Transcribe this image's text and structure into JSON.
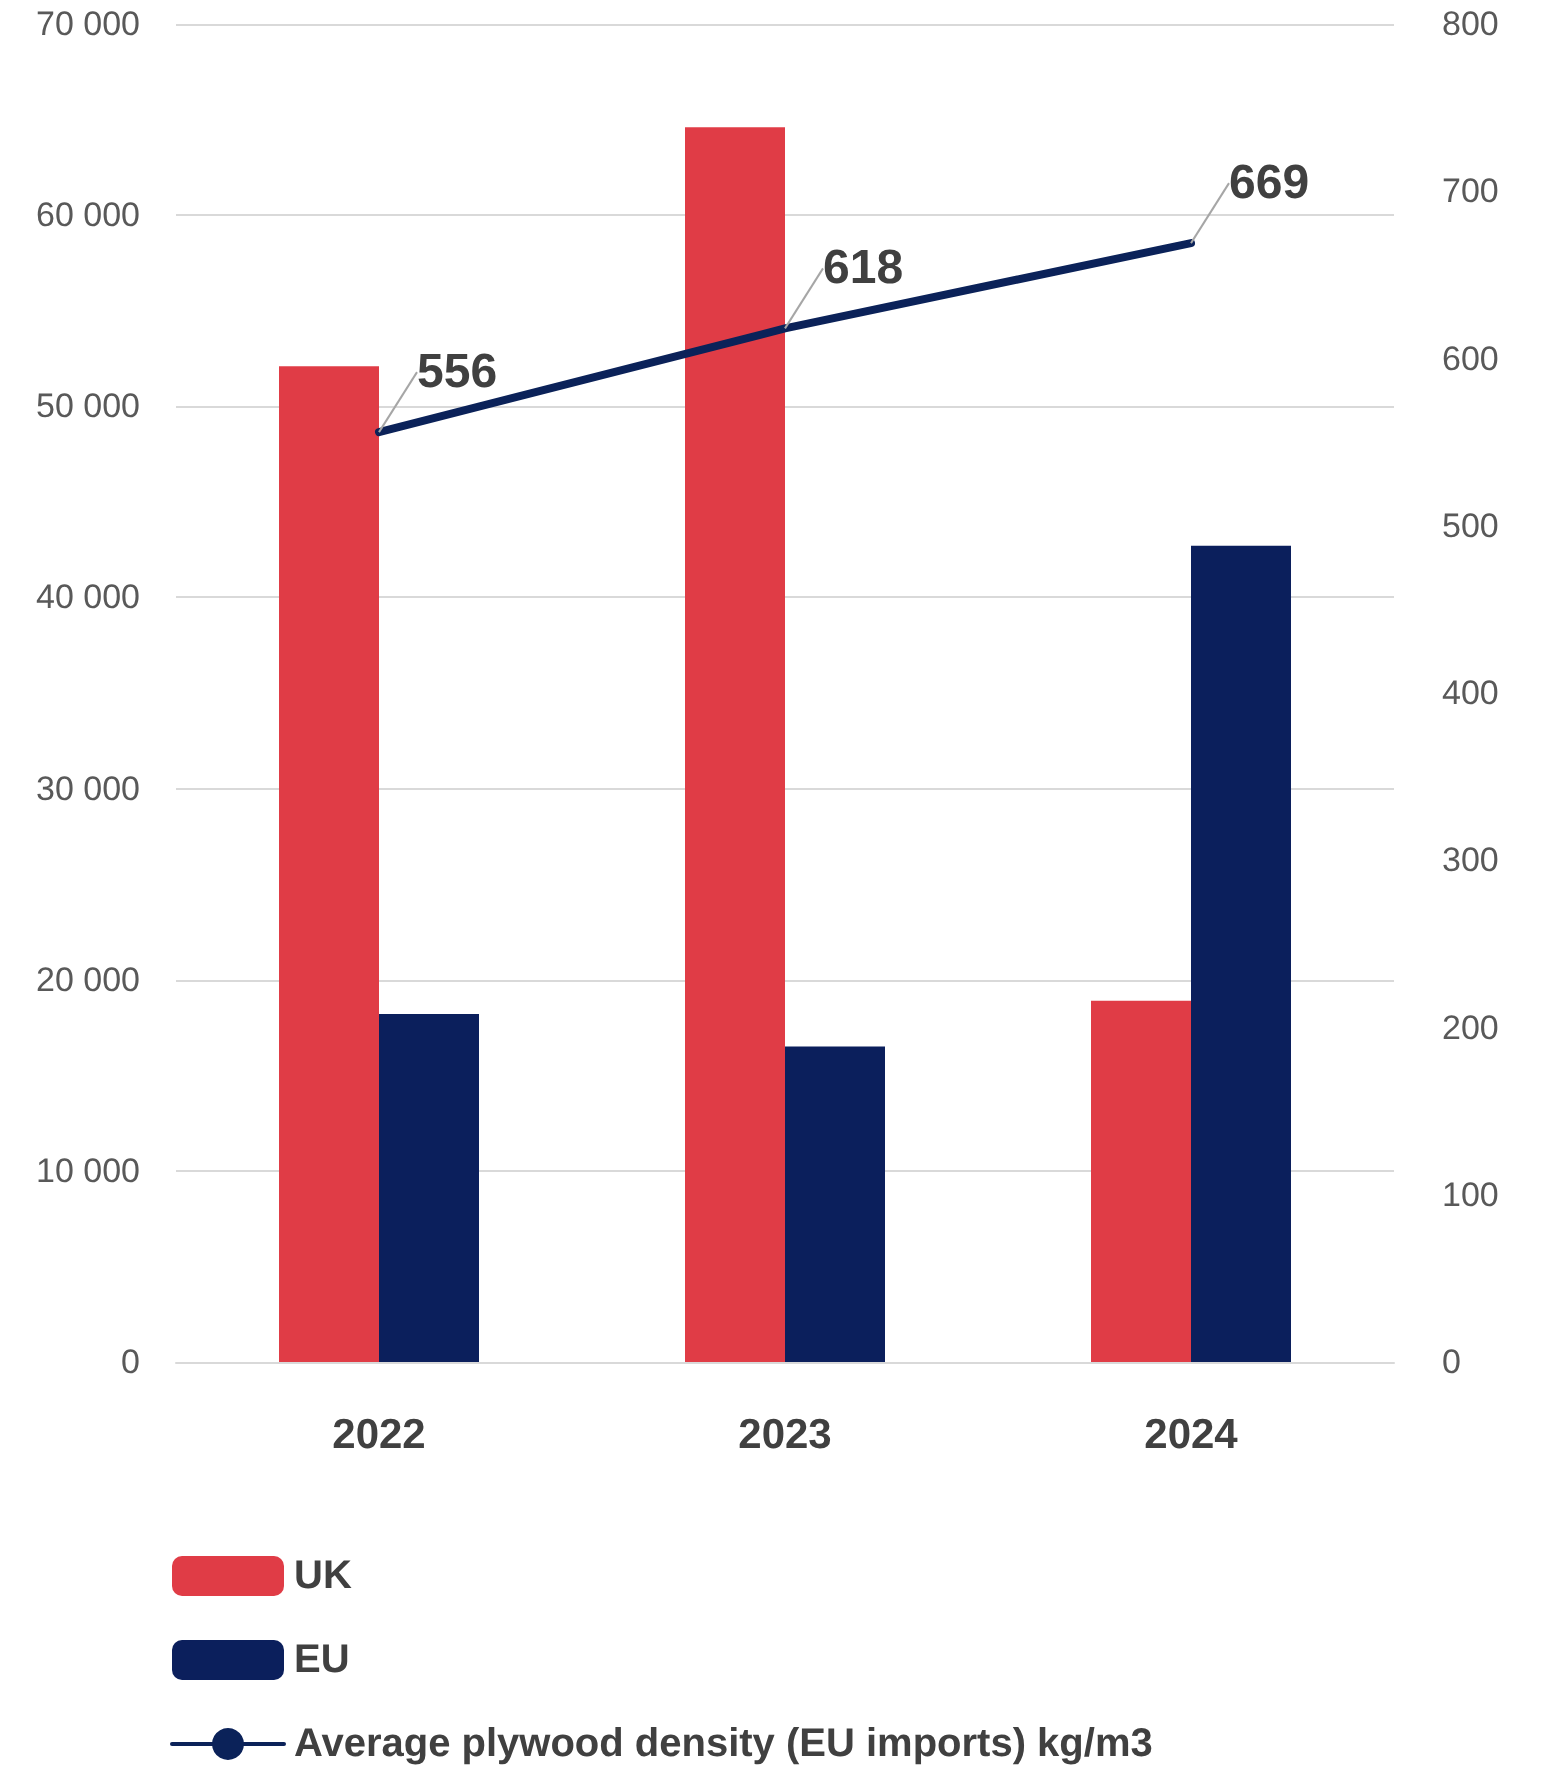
{
  "chart_data": {
    "type": "bar",
    "categories": [
      "2022",
      "2023",
      "2024"
    ],
    "series": [
      {
        "name": "UK",
        "color": "#e03c46",
        "values": [
          52100,
          64600,
          18900
        ]
      },
      {
        "name": "EU",
        "color": "#0b1f5c",
        "values": [
          18200,
          16500,
          42700
        ]
      },
      {
        "name": "Average plywood density (EU imports) kg/m3",
        "type": "line",
        "axis": "y2",
        "color": "#0b2259",
        "values": [
          556,
          618,
          669
        ],
        "value_labels": [
          "556",
          "618",
          "669"
        ]
      }
    ],
    "ylim": [
      0,
      70000
    ],
    "yticks": [
      0,
      {
        "value": 10000,
        "label": "10 000"
      },
      {
        "value": 20000,
        "label": "20 000"
      },
      {
        "value": 30000,
        "label": "30 000"
      },
      {
        "value": 40000,
        "label": "40 000"
      },
      {
        "value": 50000,
        "label": "50 000"
      },
      {
        "value": 60000,
        "label": "60 000"
      },
      {
        "value": 70000,
        "label": "70 000"
      }
    ],
    "y2lim": [
      0,
      800
    ],
    "y2ticks": [
      0,
      100,
      200,
      300,
      400,
      500,
      600,
      700,
      800
    ],
    "grid": "y",
    "legend": "bottom",
    "marker": "none",
    "line_style": "solid"
  }
}
